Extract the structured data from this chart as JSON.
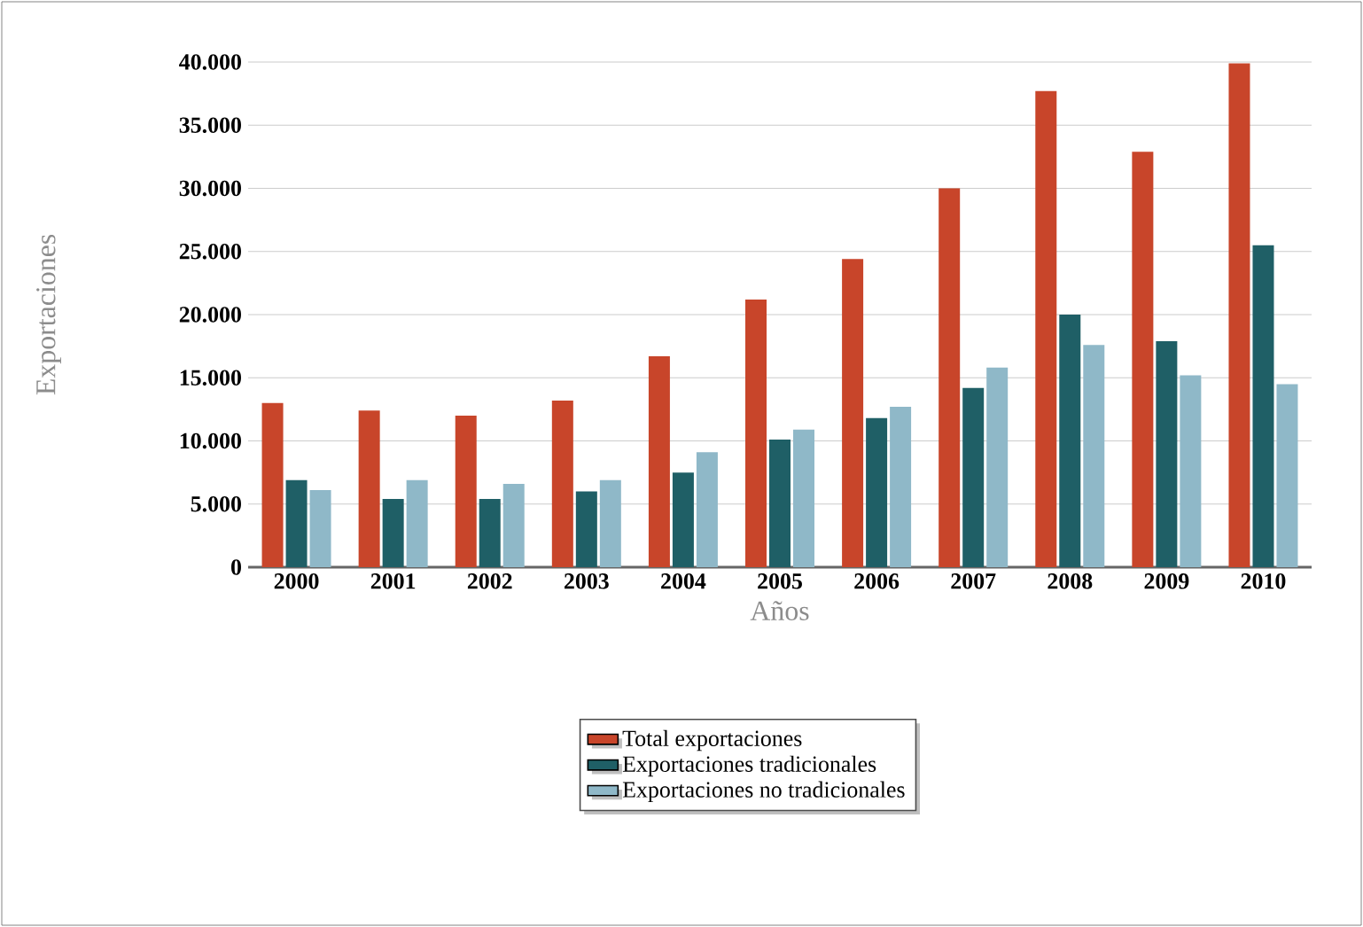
{
  "chart_data": {
    "type": "bar",
    "xlabel": "Años",
    "ylabel": "Exportaciones",
    "categories": [
      "2000",
      "2001",
      "2002",
      "2003",
      "2004",
      "2005",
      "2006",
      "2007",
      "2008",
      "2009",
      "2010"
    ],
    "series": [
      {
        "name": "Total exportaciones",
        "color": "#c8452a",
        "values": [
          13000,
          12400,
          12000,
          13200,
          16700,
          21200,
          24400,
          30000,
          37700,
          32900,
          39900
        ]
      },
      {
        "name": "Exportaciones tradicionales",
        "color": "#1f5f66",
        "values": [
          6900,
          5400,
          5400,
          6000,
          7500,
          10100,
          11800,
          14200,
          20000,
          17900,
          25500
        ]
      },
      {
        "name": "Exportaciones no tradicionales",
        "color": "#8fb8c8",
        "values": [
          6100,
          6900,
          6600,
          6900,
          9100,
          10900,
          12700,
          15800,
          17600,
          15200,
          14500
        ]
      }
    ],
    "ylim": [
      0,
      40000
    ],
    "yticks": [
      0,
      {
        "value": 5000,
        "label": "5.000"
      },
      {
        "value": 10000,
        "label": "10.000"
      },
      {
        "value": 15000,
        "label": "15.000"
      },
      {
        "value": 20000,
        "label": "20.000"
      },
      {
        "value": 25000,
        "label": "25.000"
      },
      {
        "value": 30000,
        "label": "30.000"
      },
      {
        "value": 35000,
        "label": "35.000"
      },
      {
        "value": 40000,
        "label": "40.000"
      }
    ],
    "grid": "y",
    "legend": "bottom"
  }
}
